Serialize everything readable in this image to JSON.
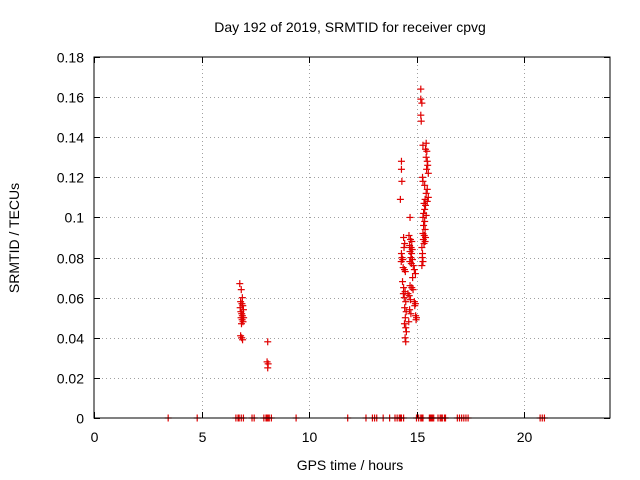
{
  "chart_data": {
    "type": "scatter",
    "title": "Day 192 of 2019, SRMTID for receiver cpvg",
    "xlabel": "GPS time / hours",
    "ylabel": "SRMTID / TECUs",
    "xlim": [
      0,
      24
    ],
    "ylim": [
      0,
      0.18
    ],
    "xticks": [
      0,
      5,
      10,
      15,
      20
    ],
    "yticks": [
      0,
      0.02,
      0.04,
      0.06,
      0.08,
      0.1,
      0.12,
      0.14,
      0.16,
      0.18
    ],
    "xtick_labels": [
      "0",
      "5",
      "10",
      "15",
      "20"
    ],
    "ytick_labels": [
      "0",
      "0.02",
      "0.04",
      "0.06",
      "0.08",
      "0.1",
      "0.12",
      "0.14",
      "0.16",
      "0.18"
    ],
    "grid": true,
    "marker": "+",
    "color": "#e00000",
    "series": [
      {
        "name": "SRMTID",
        "points": [
          [
            3.45,
            0
          ],
          [
            4.8,
            0
          ],
          [
            6.6,
            0
          ],
          [
            6.7,
            0
          ],
          [
            6.75,
            0
          ],
          [
            6.85,
            0
          ],
          [
            6.95,
            0
          ],
          [
            7.35,
            0
          ],
          [
            7.45,
            0
          ],
          [
            7.9,
            0
          ],
          [
            8.0,
            0
          ],
          [
            8.05,
            0
          ],
          [
            8.1,
            0
          ],
          [
            8.15,
            0
          ],
          [
            8.25,
            0
          ],
          [
            9.4,
            0
          ],
          [
            11.8,
            0
          ],
          [
            12.65,
            0
          ],
          [
            12.95,
            0
          ],
          [
            13.05,
            0
          ],
          [
            13.15,
            0
          ],
          [
            13.45,
            0
          ],
          [
            13.75,
            0
          ],
          [
            14.0,
            0
          ],
          [
            14.1,
            0
          ],
          [
            14.2,
            0
          ],
          [
            14.25,
            0
          ],
          [
            14.3,
            0
          ],
          [
            14.4,
            0
          ],
          [
            15.0,
            0
          ],
          [
            15.1,
            0
          ],
          [
            15.2,
            0
          ],
          [
            15.25,
            0
          ],
          [
            15.3,
            0
          ],
          [
            15.6,
            0
          ],
          [
            15.65,
            0
          ],
          [
            15.7,
            0
          ],
          [
            15.75,
            0
          ],
          [
            15.8,
            0
          ],
          [
            16.0,
            0
          ],
          [
            16.1,
            0
          ],
          [
            16.15,
            0
          ],
          [
            16.2,
            0
          ],
          [
            16.3,
            0
          ],
          [
            16.35,
            0
          ],
          [
            16.9,
            0
          ],
          [
            17.0,
            0
          ],
          [
            17.1,
            0
          ],
          [
            17.2,
            0
          ],
          [
            17.3,
            0
          ],
          [
            17.4,
            0
          ],
          [
            20.75,
            0
          ],
          [
            20.85,
            0
          ],
          [
            20.95,
            0
          ],
          [
            6.78,
            0.067
          ],
          [
            6.85,
            0.064
          ],
          [
            6.9,
            0.06
          ],
          [
            6.82,
            0.058
          ],
          [
            6.88,
            0.057
          ],
          [
            6.92,
            0.056
          ],
          [
            6.8,
            0.055
          ],
          [
            6.95,
            0.054
          ],
          [
            6.83,
            0.053
          ],
          [
            6.87,
            0.052
          ],
          [
            6.9,
            0.051
          ],
          [
            6.84,
            0.05
          ],
          [
            6.96,
            0.05
          ],
          [
            6.89,
            0.049
          ],
          [
            6.93,
            0.048
          ],
          [
            6.86,
            0.047
          ],
          [
            6.82,
            0.041
          ],
          [
            6.87,
            0.04
          ],
          [
            6.91,
            0.039
          ],
          [
            8.08,
            0.038
          ],
          [
            8.05,
            0.028
          ],
          [
            8.1,
            0.027
          ],
          [
            8.08,
            0.025
          ],
          [
            14.3,
            0.128
          ],
          [
            14.3,
            0.124
          ],
          [
            14.32,
            0.118
          ],
          [
            14.25,
            0.109
          ],
          [
            14.3,
            0.082
          ],
          [
            14.33,
            0.08
          ],
          [
            14.36,
            0.079
          ],
          [
            14.29,
            0.078
          ],
          [
            14.4,
            0.09
          ],
          [
            14.45,
            0.087
          ],
          [
            14.42,
            0.085
          ],
          [
            14.38,
            0.075
          ],
          [
            14.44,
            0.074
          ],
          [
            14.48,
            0.073
          ],
          [
            14.35,
            0.068
          ],
          [
            14.4,
            0.065
          ],
          [
            14.47,
            0.063
          ],
          [
            14.39,
            0.062
          ],
          [
            14.43,
            0.06
          ],
          [
            14.5,
            0.058
          ],
          [
            14.45,
            0.055
          ],
          [
            14.52,
            0.053
          ],
          [
            14.48,
            0.05
          ],
          [
            14.44,
            0.047
          ],
          [
            14.5,
            0.045
          ],
          [
            14.53,
            0.043
          ],
          [
            14.47,
            0.04
          ],
          [
            14.5,
            0.038
          ],
          [
            14.7,
            0.1
          ],
          [
            14.65,
            0.091
          ],
          [
            14.72,
            0.089
          ],
          [
            14.78,
            0.088
          ],
          [
            14.68,
            0.086
          ],
          [
            14.75,
            0.085
          ],
          [
            14.8,
            0.084
          ],
          [
            14.7,
            0.083
          ],
          [
            14.77,
            0.082
          ],
          [
            14.74,
            0.08
          ],
          [
            14.81,
            0.079
          ],
          [
            14.69,
            0.078
          ],
          [
            14.76,
            0.077
          ],
          [
            14.85,
            0.076
          ],
          [
            14.9,
            0.074
          ],
          [
            14.95,
            0.072
          ],
          [
            14.82,
            0.07
          ],
          [
            14.7,
            0.066
          ],
          [
            14.78,
            0.065
          ],
          [
            14.84,
            0.064
          ],
          [
            14.6,
            0.062
          ],
          [
            14.66,
            0.061
          ],
          [
            14.72,
            0.059
          ],
          [
            14.9,
            0.058
          ],
          [
            14.95,
            0.057
          ],
          [
            14.92,
            0.056
          ],
          [
            14.68,
            0.054
          ],
          [
            14.74,
            0.052
          ],
          [
            14.96,
            0.051
          ],
          [
            15.0,
            0.05
          ],
          [
            14.98,
            0.049
          ],
          [
            14.64,
            0.048
          ],
          [
            15.2,
            0.164
          ],
          [
            15.2,
            0.159
          ],
          [
            15.25,
            0.157
          ],
          [
            15.2,
            0.151
          ],
          [
            15.22,
            0.148
          ],
          [
            15.3,
            0.136
          ],
          [
            15.45,
            0.137
          ],
          [
            15.42,
            0.134
          ],
          [
            15.48,
            0.133
          ],
          [
            15.45,
            0.13
          ],
          [
            15.5,
            0.128
          ],
          [
            15.52,
            0.126
          ],
          [
            15.47,
            0.124
          ],
          [
            15.55,
            0.122
          ],
          [
            15.28,
            0.12
          ],
          [
            15.3,
            0.118
          ],
          [
            15.38,
            0.116
          ],
          [
            15.5,
            0.114
          ],
          [
            15.45,
            0.112
          ],
          [
            15.55,
            0.11
          ],
          [
            15.4,
            0.109
          ],
          [
            15.5,
            0.108
          ],
          [
            15.35,
            0.107
          ],
          [
            15.42,
            0.106
          ],
          [
            15.38,
            0.104
          ],
          [
            15.33,
            0.102
          ],
          [
            15.45,
            0.101
          ],
          [
            15.3,
            0.1
          ],
          [
            15.38,
            0.098
          ],
          [
            15.33,
            0.096
          ],
          [
            15.4,
            0.094
          ],
          [
            15.3,
            0.092
          ],
          [
            15.36,
            0.091
          ],
          [
            15.42,
            0.09
          ],
          [
            15.32,
            0.089
          ],
          [
            15.4,
            0.088
          ],
          [
            15.35,
            0.087
          ],
          [
            15.25,
            0.085
          ],
          [
            15.28,
            0.082
          ],
          [
            15.27,
            0.08
          ],
          [
            15.3,
            0.078
          ],
          [
            15.25,
            0.076
          ]
        ]
      }
    ]
  }
}
